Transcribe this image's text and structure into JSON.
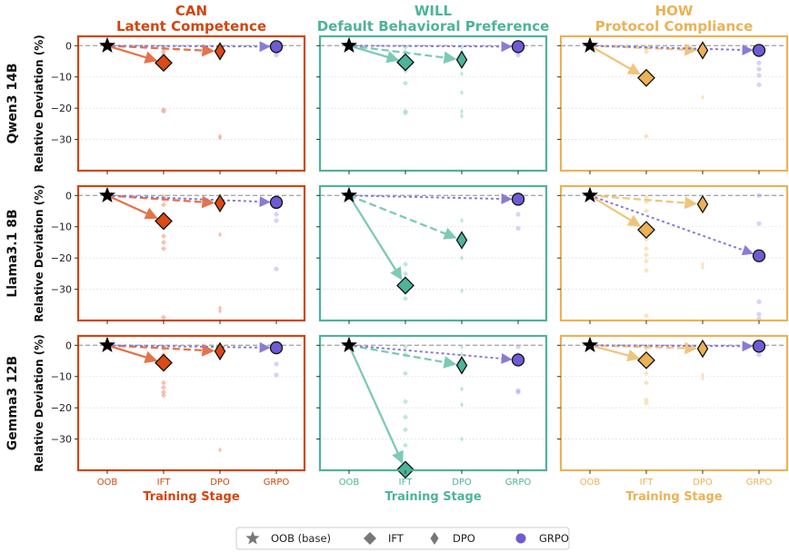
{
  "chart_data": {
    "type": "scatter",
    "ylabel": "Relative Deviation (%)",
    "xlabel": "Training Stage",
    "x_categories": [
      "OOB",
      "IFT",
      "DPO",
      "GRPO"
    ],
    "ylim": [
      -40,
      3
    ],
    "yticks": [
      0,
      -10,
      -20,
      -30
    ],
    "grid": "horizontal dotted",
    "baseline": "dashed line at y=0",
    "columns": [
      {
        "key": "can",
        "title": "CAN",
        "subtitle": "Latent Competence",
        "color": "#d1460f",
        "fill": "#dc4a16",
        "light": "#f0a990"
      },
      {
        "key": "will",
        "title": "WILL",
        "subtitle": "Default Behavioral Preference",
        "color": "#4db39a",
        "fill": "#4db39a",
        "light": "#a5dccf"
      },
      {
        "key": "how",
        "title": "HOW",
        "subtitle": "Protocol Compliance",
        "color": "#ebb257",
        "fill": "#ebb257",
        "light": "#f5d9a8"
      }
    ],
    "rows": [
      {
        "key": "qwen",
        "label": "Qwen3 14B"
      },
      {
        "key": "llama",
        "label": "Llama3.1 8B"
      },
      {
        "key": "gemma",
        "label": "Gemma3 12B"
      }
    ],
    "grpo_color": "#6f5bd3",
    "panels": [
      {
        "row": 0,
        "col": 0,
        "ift": -5.5,
        "dpo": -1.8,
        "grpo": -0.3,
        "ift_pts": [
          -0.5,
          -1,
          -2,
          -3,
          -20.5,
          -21
        ],
        "dpo_pts": [
          -0.5,
          -1,
          -2,
          -29,
          -29.5
        ],
        "grpo_pts": [
          -0.2,
          -0.5,
          -1.5,
          -2,
          -3
        ]
      },
      {
        "row": 0,
        "col": 1,
        "ift": -5.3,
        "dpo": -4.5,
        "grpo": -0.3,
        "ift_pts": [
          -0.5,
          -2,
          -8,
          -12,
          -21,
          -21.5
        ],
        "dpo_pts": [
          -0.5,
          -2,
          -9,
          -15,
          -21,
          -22.5
        ],
        "grpo_pts": [
          -0.2,
          -0.5,
          -2,
          -3
        ]
      },
      {
        "row": 0,
        "col": 2,
        "ift": -10.3,
        "dpo": -1.5,
        "grpo": -1.5,
        "ift_pts": [
          -0.5,
          -1,
          -2,
          -8,
          -29
        ],
        "dpo_pts": [
          -0.5,
          -1,
          -2,
          -16.5
        ],
        "grpo_pts": [
          -1,
          -3,
          -5.5,
          -7.5,
          -9.5,
          -12.5
        ]
      },
      {
        "row": 1,
        "col": 0,
        "ift": -8.2,
        "dpo": -2.5,
        "grpo": -2.2,
        "ift_pts": [
          -0.5,
          -1,
          -3,
          -6,
          -10,
          -13,
          -15,
          -17,
          -39
        ],
        "dpo_pts": [
          -0.5,
          -1,
          -3,
          -12.5,
          -36,
          -37
        ],
        "grpo_pts": [
          -1,
          -2,
          -6,
          -8,
          -23.5
        ]
      },
      {
        "row": 1,
        "col": 1,
        "ift": -28.8,
        "dpo": -14.3,
        "grpo": -1.2,
        "ift_pts": [
          -22,
          -25,
          -30,
          -31,
          -33
        ],
        "dpo_pts": [
          -8,
          -13,
          -20,
          -30.5
        ],
        "grpo_pts": [
          -0.5,
          -2,
          -6,
          -10.5
        ]
      },
      {
        "row": 1,
        "col": 2,
        "ift": -11.0,
        "dpo": -2.8,
        "grpo": -19.3,
        "ift_pts": [
          -0.5,
          -2,
          -5,
          -14,
          -17,
          -19,
          -21,
          -24,
          -38.5
        ],
        "dpo_pts": [
          -0.5,
          -2,
          -22,
          -23
        ],
        "grpo_pts": [
          0,
          -9,
          -34,
          -38,
          -39.5
        ]
      },
      {
        "row": 2,
        "col": 0,
        "ift": -5.6,
        "dpo": -1.9,
        "grpo": -0.8,
        "ift_pts": [
          -0.5,
          -1,
          -3,
          -12,
          -13.5,
          -15,
          -16
        ],
        "dpo_pts": [
          -0.5,
          -1,
          -33.5
        ],
        "grpo_pts": [
          -0.5,
          -1,
          -6,
          -9.5
        ]
      },
      {
        "row": 2,
        "col": 1,
        "ift": -39.8,
        "dpo": -6.4,
        "grpo": -4.7,
        "ift_pts": [
          -0.5,
          -3,
          -9,
          -18,
          -23,
          -27,
          -32
        ],
        "dpo_pts": [
          -0.5,
          -3,
          -14,
          -19,
          -30
        ],
        "grpo_pts": [
          -0.5,
          -3,
          -14.5,
          -15
        ]
      },
      {
        "row": 2,
        "col": 2,
        "ift": -4.8,
        "dpo": -1.1,
        "grpo": -0.3,
        "ift_pts": [
          -0.5,
          -1,
          -3,
          -9,
          -12,
          -17.5,
          -18.5
        ],
        "dpo_pts": [
          -0.5,
          -1,
          -9.5,
          -10.5
        ],
        "grpo_pts": [
          0,
          -1,
          -3
        ]
      }
    ],
    "legend": {
      "placement": "bottom-center",
      "items": [
        {
          "key": "oob",
          "label": "OOB (base)",
          "marker": "star"
        },
        {
          "key": "ift",
          "label": "IFT",
          "marker": "diamond"
        },
        {
          "key": "dpo",
          "label": "DPO",
          "marker": "thin-diamond"
        },
        {
          "key": "grpo",
          "label": "GRPO",
          "marker": "circle"
        }
      ]
    }
  }
}
